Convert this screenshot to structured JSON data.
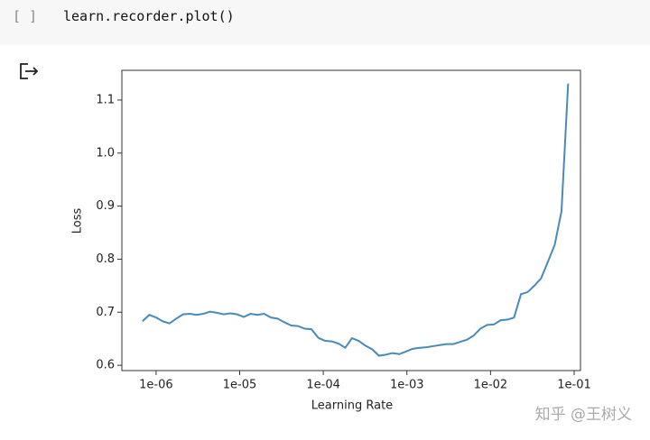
{
  "cell": {
    "prompt": "[ ]",
    "code": "learn.recorder.plot()"
  },
  "chart_data": {
    "type": "line",
    "xlabel": "Learning Rate",
    "ylabel": "Loss",
    "xscale": "log",
    "xlim": [
      3.9e-07,
      0.119
    ],
    "ylim": [
      0.59,
      1.156
    ],
    "xticks": [
      {
        "value": 1e-06,
        "label": "1e-06"
      },
      {
        "value": 1e-05,
        "label": "1e-05"
      },
      {
        "value": 0.0001,
        "label": "1e-04"
      },
      {
        "value": 0.001,
        "label": "1e-03"
      },
      {
        "value": 0.01,
        "label": "1e-02"
      },
      {
        "value": 0.1,
        "label": "1e-01"
      }
    ],
    "yticks": [
      0.6,
      0.7,
      0.8,
      0.9,
      {
        "value": 1,
        "label": "1.0"
      },
      1.1
    ],
    "series": [
      {
        "color": "#4a8ab9",
        "x": [
          6.89e-07,
          8.3e-07,
          9.99e-07,
          1.2e-06,
          1.45e-06,
          1.75e-06,
          2.1e-06,
          2.54e-06,
          3.05e-06,
          3.67e-06,
          4.43e-06,
          5.33e-06,
          6.42e-06,
          7.73e-06,
          9.31e-06,
          1.12e-05,
          1.35e-05,
          1.63e-05,
          1.96e-05,
          2.36e-05,
          2.84e-05,
          3.43e-05,
          4.13e-05,
          4.97e-05,
          5.98e-05,
          7.21e-05,
          8.69e-05,
          0.000105,
          0.000126,
          0.000152,
          0.000183,
          0.00022,
          0.000265,
          0.000319,
          0.000385,
          0.000463,
          0.000558,
          0.000673,
          0.000809,
          0.000975,
          0.00117,
          0.00142,
          0.00171,
          0.00205,
          0.00247,
          0.00298,
          0.00359,
          0.00432,
          0.0052,
          0.00627,
          0.00755,
          0.0091,
          0.011,
          0.0132,
          0.0159,
          0.0191,
          0.0231,
          0.0278,
          0.0334,
          0.0403,
          0.0485,
          0.0585,
          0.0705,
          0.0847
        ],
        "values": [
          0.683,
          0.695,
          0.69,
          0.683,
          0.679,
          0.688,
          0.696,
          0.697,
          0.695,
          0.697,
          0.701,
          0.699,
          0.696,
          0.698,
          0.696,
          0.691,
          0.697,
          0.695,
          0.697,
          0.69,
          0.688,
          0.681,
          0.675,
          0.674,
          0.669,
          0.668,
          0.652,
          0.646,
          0.645,
          0.641,
          0.633,
          0.651,
          0.646,
          0.637,
          0.63,
          0.618,
          0.62,
          0.623,
          0.621,
          0.626,
          0.631,
          0.633,
          0.634,
          0.636,
          0.638,
          0.64,
          0.64,
          0.644,
          0.648,
          0.656,
          0.669,
          0.676,
          0.677,
          0.685,
          0.686,
          0.69,
          0.734,
          0.738,
          0.75,
          0.764,
          0.795,
          0.827,
          0.89,
          1.131
        ]
      }
    ]
  },
  "watermark": "知乎 @王树义"
}
